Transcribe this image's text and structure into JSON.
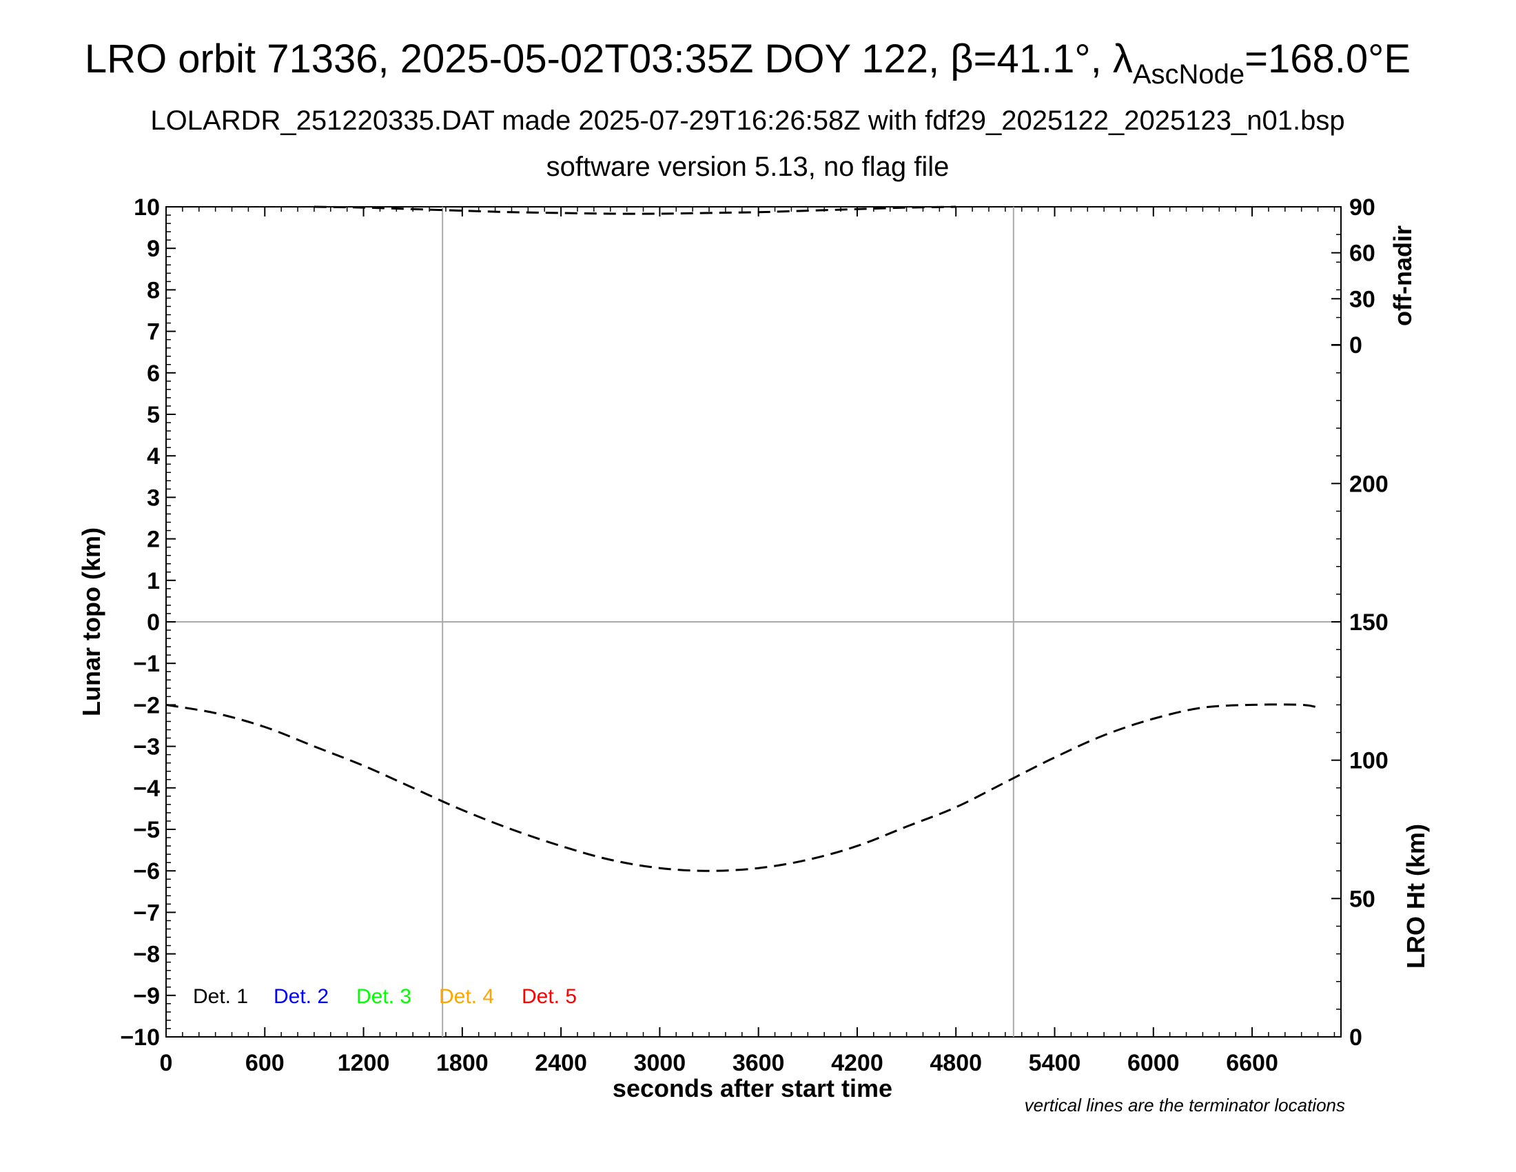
{
  "title": {
    "main": "LRO orbit 71336, 2025-05-02T03:35Z DOY 122, β=41.1°, λ",
    "sub": "AscNode",
    "tail": "=168.0°E"
  },
  "subtitle1": "LOLARDR_251220335.DAT made 2025-07-29T16:26:58Z with fdf29_2025122_2025123_n01.bsp",
  "subtitle2": "software version 5.13, no flag file",
  "note": "vertical lines are the terminator locations",
  "colors": {
    "det1": "#000000",
    "det2": "#0000ff",
    "det3": "#00ff00",
    "det4": "#ffa500",
    "det5": "#ff0000",
    "grid": "#aaaaaa"
  },
  "chart_data": {
    "type": "line",
    "xlabel": "seconds after start time",
    "ylabel": "Lunar topo (km)",
    "y2label_top": "off-nadir",
    "y2label_bottom": "LRO Ht (km)",
    "xlim": [
      0,
      7140
    ],
    "ylim": [
      -10,
      10
    ],
    "x_ticks": [
      0,
      600,
      1200,
      1800,
      2400,
      3000,
      3600,
      4200,
      4800,
      5400,
      6000,
      6600
    ],
    "y_ticks": [
      10,
      9,
      8,
      7,
      6,
      5,
      4,
      3,
      2,
      1,
      0,
      -1,
      -2,
      -3,
      -4,
      -5,
      -6,
      -7,
      -8,
      -9,
      -10
    ],
    "y_tick_labels": [
      "10",
      "9",
      "8",
      "7",
      "6",
      "5",
      "4",
      "3",
      "2",
      "1",
      "0",
      "−1",
      "−2",
      "−3",
      "−4",
      "−5",
      "−6",
      "−7",
      "−8",
      "−9",
      "−10"
    ],
    "offnadir_ticks": [
      "90",
      "60",
      "30",
      "0"
    ],
    "height_ticks": [
      "200",
      "150",
      "100",
      "50",
      "0"
    ],
    "height_range_km": [
      0,
      300
    ],
    "terminator_x": [
      1680,
      5150
    ],
    "zero_line_y": 0,
    "legend": [
      "Det. 1",
      "Det. 2",
      "Det. 3",
      "Det. 4",
      "Det. 5"
    ],
    "series": [
      {
        "name": "LRO Ht (km)",
        "style": "dashed",
        "x": [
          0,
          300,
          600,
          900,
          1200,
          1500,
          1800,
          2100,
          2400,
          2700,
          3000,
          3300,
          3600,
          3900,
          4200,
          4500,
          4800,
          5100,
          5400,
          5700,
          6000,
          6300,
          6600,
          6900,
          7000
        ],
        "y": [
          120,
          117,
          112,
          105,
          98,
          90,
          82,
          75,
          69,
          64,
          61,
          60,
          61,
          64,
          69,
          76,
          83,
          92,
          101,
          109,
          115,
          119,
          120,
          120,
          119
        ]
      },
      {
        "name": "off-nadir",
        "style": "dashed",
        "x": [
          900,
          1200,
          1500,
          1800,
          2100,
          2400,
          2700,
          3000,
          3300,
          3600,
          3900,
          4200,
          4500,
          4800
        ],
        "y": [
          90,
          89.5,
          88.5,
          87.5,
          86.5,
          86,
          85.5,
          85.5,
          86,
          86.5,
          87.5,
          88.5,
          89.5,
          90
        ]
      }
    ]
  }
}
